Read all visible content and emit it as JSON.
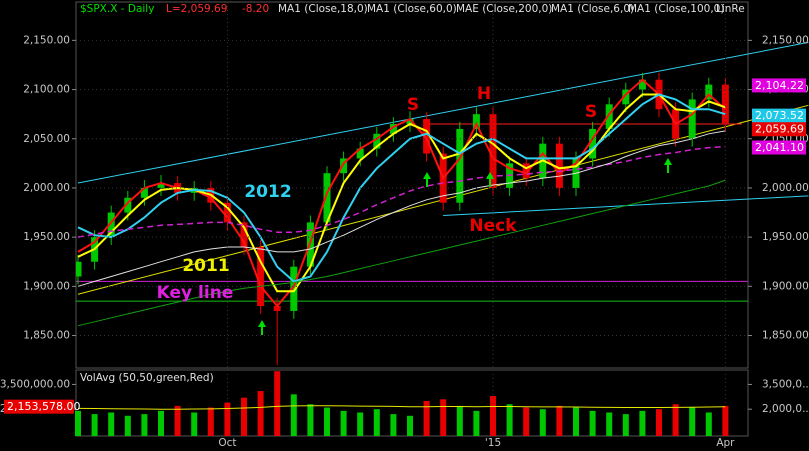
{
  "chart_data": {
    "type": "candlestick",
    "header": {
      "symbol": "$SPX.X - Daily",
      "last": "L=2,059.69",
      "change": "-8.20",
      "studies": [
        "MA1 (Close,18,0)",
        "MA1 (Close,60,0)",
        "MAE (Close,200,0)",
        "MA1 (Close,6,0)",
        "MA1 (Close,100,0)",
        "LinRe"
      ]
    },
    "categories": [
      null,
      null,
      null,
      null,
      null,
      null,
      null,
      null,
      null,
      "Oct",
      null,
      null,
      null,
      null,
      null,
      null,
      null,
      null,
      null,
      null,
      null,
      null,
      null,
      null,
      null,
      "'15",
      null,
      null,
      null,
      null,
      null,
      null,
      null,
      null,
      null,
      null,
      null,
      null,
      null,
      "Apr"
    ],
    "open": [
      1910,
      1925,
      1950,
      1975,
      1990,
      2000,
      2005,
      1995,
      2000,
      1985,
      1965,
      1940,
      1880,
      1875,
      1920,
      1965,
      2015,
      2030,
      2040,
      2055,
      2065,
      2070,
      2035,
      1985,
      2060,
      2075,
      2000,
      2025,
      2010,
      2045,
      2000,
      2030,
      2060,
      2085,
      2100,
      2110,
      2080,
      2050,
      2090,
      2105
    ],
    "high": [
      1932,
      1957,
      1982,
      1997,
      2008,
      2013,
      2012,
      2007,
      2007,
      1992,
      1972,
      1947,
      1888,
      1927,
      1972,
      2022,
      2037,
      2047,
      2062,
      2072,
      2078,
      2077,
      2042,
      2067,
      2082,
      2082,
      2032,
      2032,
      2052,
      2052,
      2037,
      2067,
      2092,
      2107,
      2117,
      2117,
      2087,
      2097,
      2112,
      2112
    ],
    "low": [
      1902,
      1917,
      1942,
      1967,
      1982,
      1992,
      1987,
      1987,
      1977,
      1957,
      1932,
      1872,
      1820,
      1867,
      1912,
      1957,
      2007,
      2022,
      2032,
      2047,
      2057,
      2027,
      1977,
      1977,
      2052,
      1992,
      1992,
      2002,
      2002,
      1992,
      1992,
      2022,
      2052,
      2077,
      2092,
      2072,
      2042,
      2042,
      2082,
      2057
    ],
    "close": [
      1925,
      1950,
      1975,
      1990,
      2000,
      2005,
      1995,
      2000,
      1985,
      1965,
      1940,
      1880,
      1875,
      1920,
      1965,
      2015,
      2030,
      2040,
      2055,
      2065,
      2070,
      2035,
      1985,
      2060,
      2075,
      2000,
      2025,
      2010,
      2045,
      2000,
      2030,
      2060,
      2085,
      2100,
      2110,
      2080,
      2050,
      2090,
      2105,
      2065
    ],
    "up_color": "#00c800",
    "down_color": "#e80000",
    "series": [
      {
        "name": "MA1 (Close,6,0)",
        "color": "#ff1010",
        "values": [
          1935,
          1945,
          1965,
          1985,
          2000,
          2005,
          2000,
          1998,
          1990,
          1970,
          1945,
          1900,
          1880,
          1900,
          1945,
          1995,
          2025,
          2040,
          2050,
          2062,
          2070,
          2050,
          2010,
          2030,
          2065,
          2030,
          2020,
          2015,
          2035,
          2015,
          2025,
          2050,
          2075,
          2095,
          2110,
          2095,
          2065,
          2075,
          2095,
          2080
        ]
      },
      {
        "name": "MA1 (Close,18,0)",
        "color": "#ffff00",
        "values": [
          1930,
          1938,
          1955,
          1972,
          1988,
          1998,
          2000,
          1998,
          1993,
          1980,
          1960,
          1925,
          1895,
          1895,
          1920,
          1965,
          2005,
          2028,
          2042,
          2055,
          2065,
          2058,
          2030,
          2035,
          2055,
          2045,
          2030,
          2020,
          2028,
          2020,
          2022,
          2038,
          2060,
          2080,
          2095,
          2095,
          2080,
          2078,
          2088,
          2082
        ]
      },
      {
        "name": "MA1 (Close,60,0)",
        "color": "#30d0f0",
        "values": [
          1960,
          1952,
          1950,
          1958,
          1970,
          1985,
          1995,
          1998,
          1997,
          1990,
          1975,
          1950,
          1920,
          1905,
          1910,
          1935,
          1970,
          2000,
          2020,
          2035,
          2050,
          2055,
          2045,
          2035,
          2045,
          2050,
          2040,
          2030,
          2030,
          2030,
          2030,
          2040,
          2055,
          2070,
          2085,
          2095,
          2090,
          2080,
          2080,
          2075
        ]
      },
      {
        "name": "MAE (Close,200,0)",
        "color": "#d020d0",
        "dashed": true,
        "values": [
          1950,
          1953,
          1956,
          1958,
          1960,
          1962,
          1963,
          1964,
          1965,
          1965,
          1962,
          1958,
          1955,
          1955,
          1957,
          1962,
          1968,
          1975,
          1983,
          1990,
          1997,
          2002,
          2005,
          2007,
          2010,
          2012,
          2013,
          2014,
          2016,
          2017,
          2019,
          2021,
          2024,
          2027,
          2031,
          2034,
          2036,
          2039,
          2041,
          2042
        ]
      },
      {
        "name": "MA1 (Close,100,0)",
        "color": "#e0e0e0",
        "values": [
          1900,
          1905,
          1910,
          1915,
          1920,
          1925,
          1930,
          1935,
          1938,
          1940,
          1940,
          1938,
          1935,
          1935,
          1938,
          1945,
          1952,
          1960,
          1968,
          1975,
          1982,
          1988,
          1992,
          1995,
          2000,
          2003,
          2005,
          2007,
          2010,
          2012,
          2015,
          2020,
          2025,
          2032,
          2038,
          2043,
          2046,
          2050,
          2055,
          2058
        ]
      },
      {
        "name": "LinRe",
        "color": "#10a010",
        "values": [
          1860,
          1864,
          1868,
          1872,
          1876,
          1880,
          1884,
          1888,
          1892,
          1895,
          1898,
          1900,
          1902,
          1904,
          1907,
          1910,
          1914,
          1918,
          1922,
          1926,
          1930,
          1934,
          1938,
          1942,
          1946,
          1950,
          1954,
          1958,
          1962,
          1966,
          1970,
          1974,
          1978,
          1982,
          1986,
          1990,
          1994,
          1998,
          2002,
          2008
        ]
      }
    ],
    "trendlines": [
      {
        "color": "#30d0f0",
        "from": [
          0,
          2005
        ],
        "to": [
          44,
          2148
        ]
      },
      {
        "color": "#30d0f0",
        "from": [
          22,
          1972
        ],
        "to": [
          44,
          1992
        ]
      },
      {
        "color": "#e0e000",
        "from": [
          0,
          1892
        ],
        "to": [
          44,
          2084
        ]
      },
      {
        "color": "#ff2020",
        "from": [
          21,
          2065
        ],
        "to": [
          40,
          2065
        ]
      }
    ],
    "hlines": [
      {
        "value": 1905,
        "color": "#d020d0"
      },
      {
        "value": 1885,
        "color": "#10c010"
      }
    ],
    "price_tags": [
      {
        "label": "2,104.22",
        "value": 2104.22,
        "color": "#e000e0"
      },
      {
        "label": "2,073.52",
        "value": 2073.52,
        "color": "#20c8e8"
      },
      {
        "label": "2,059.69",
        "value": 2059.69,
        "color": "#e80000"
      },
      {
        "label": "2,041.10",
        "value": 2041.1,
        "color": "#e000e0"
      }
    ],
    "annotations": [
      "S",
      "H",
      "S",
      "Neck",
      "2012",
      "2011",
      "Key line"
    ],
    "ylim": [
      1817,
      2189
    ],
    "yticks": [
      {
        "value": 2150,
        "label": "2,150.00"
      },
      {
        "value": 2100,
        "label": "2,100.00"
      },
      {
        "value": 2050,
        "label": "2,050.00"
      },
      {
        "value": 2000,
        "label": "2,000.00"
      },
      {
        "value": 1950,
        "label": "1,950.00"
      },
      {
        "value": 1900,
        "label": "1,900.00"
      },
      {
        "value": 1850,
        "label": "1,850.00"
      }
    ],
    "grid": true,
    "volume": {
      "title": "VolAvg (50,50,green,Red)",
      "last_tag": {
        "label": "2,153,578.00",
        "value": 2153578
      },
      "values": [
        1900000,
        1700000,
        1800000,
        1600000,
        1700000,
        1900000,
        2200000,
        1800000,
        2100000,
        2400000,
        2700000,
        3100000,
        4300000,
        2900000,
        2300000,
        2100000,
        1900000,
        1800000,
        2000000,
        1700000,
        1600000,
        2500000,
        2600000,
        2200000,
        1900000,
        2800000,
        2300000,
        2100000,
        2000000,
        2200000,
        2100000,
        1900000,
        1800000,
        1700000,
        1900000,
        2000000,
        2300000,
        2100000,
        1800000,
        2200000
      ],
      "avg": [
        2050000,
        2040000,
        2030000,
        2020000,
        2010000,
        2000000,
        2000000,
        2010000,
        2020000,
        2040000,
        2070000,
        2110000,
        2170000,
        2200000,
        2210000,
        2210000,
        2200000,
        2190000,
        2180000,
        2170000,
        2150000,
        2150000,
        2160000,
        2160000,
        2150000,
        2160000,
        2160000,
        2150000,
        2140000,
        2140000,
        2130000,
        2120000,
        2110000,
        2100000,
        2100000,
        2100000,
        2110000,
        2120000,
        2130000,
        2150000
      ],
      "avg_color": "#e8e800",
      "ylim": [
        375000,
        4375000
      ],
      "yticks": [
        {
          "value": 3500000,
          "label": "3,500,000.00"
        },
        {
          "value": 2000000,
          "label": "2,000,000.00"
        }
      ],
      "right_ticks": [
        {
          "value": 3500000,
          "label": "3,500,0..."
        },
        {
          "value": 2000000,
          "label": "2,000,0..."
        }
      ]
    }
  }
}
